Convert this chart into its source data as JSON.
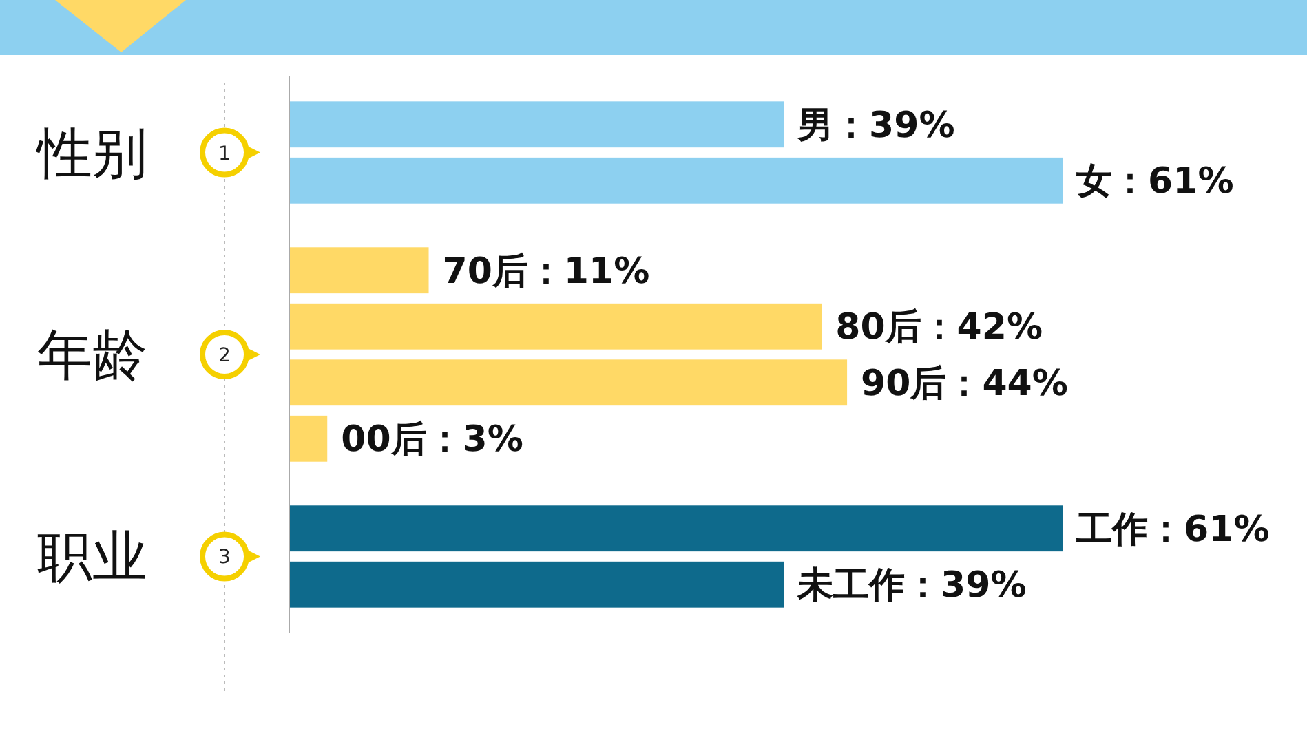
{
  "chart_data": {
    "type": "bar",
    "orientation": "horizontal",
    "categories": [
      null,
      null,
      null,
      null,
      null,
      null,
      null,
      null
    ],
    "values": [
      39,
      61,
      11,
      42,
      44,
      3,
      61,
      39
    ],
    "colors": [
      "#8dd0f0",
      "#8dd0f0",
      "#ffd966",
      "#ffd966",
      "#ffd966",
      "#ffd966",
      "#0e6a8c",
      "#0e6a8c"
    ],
    "value_labels": [
      "男：39%",
      "女：61%",
      "70后：11%",
      "80后：42%",
      "90后：44%",
      "00后：3%",
      "工作：61%",
      "未工作：39%"
    ],
    "annotations": [
      "1",
      "性别",
      "2",
      "年龄",
      "3",
      "职业"
    ]
  }
}
